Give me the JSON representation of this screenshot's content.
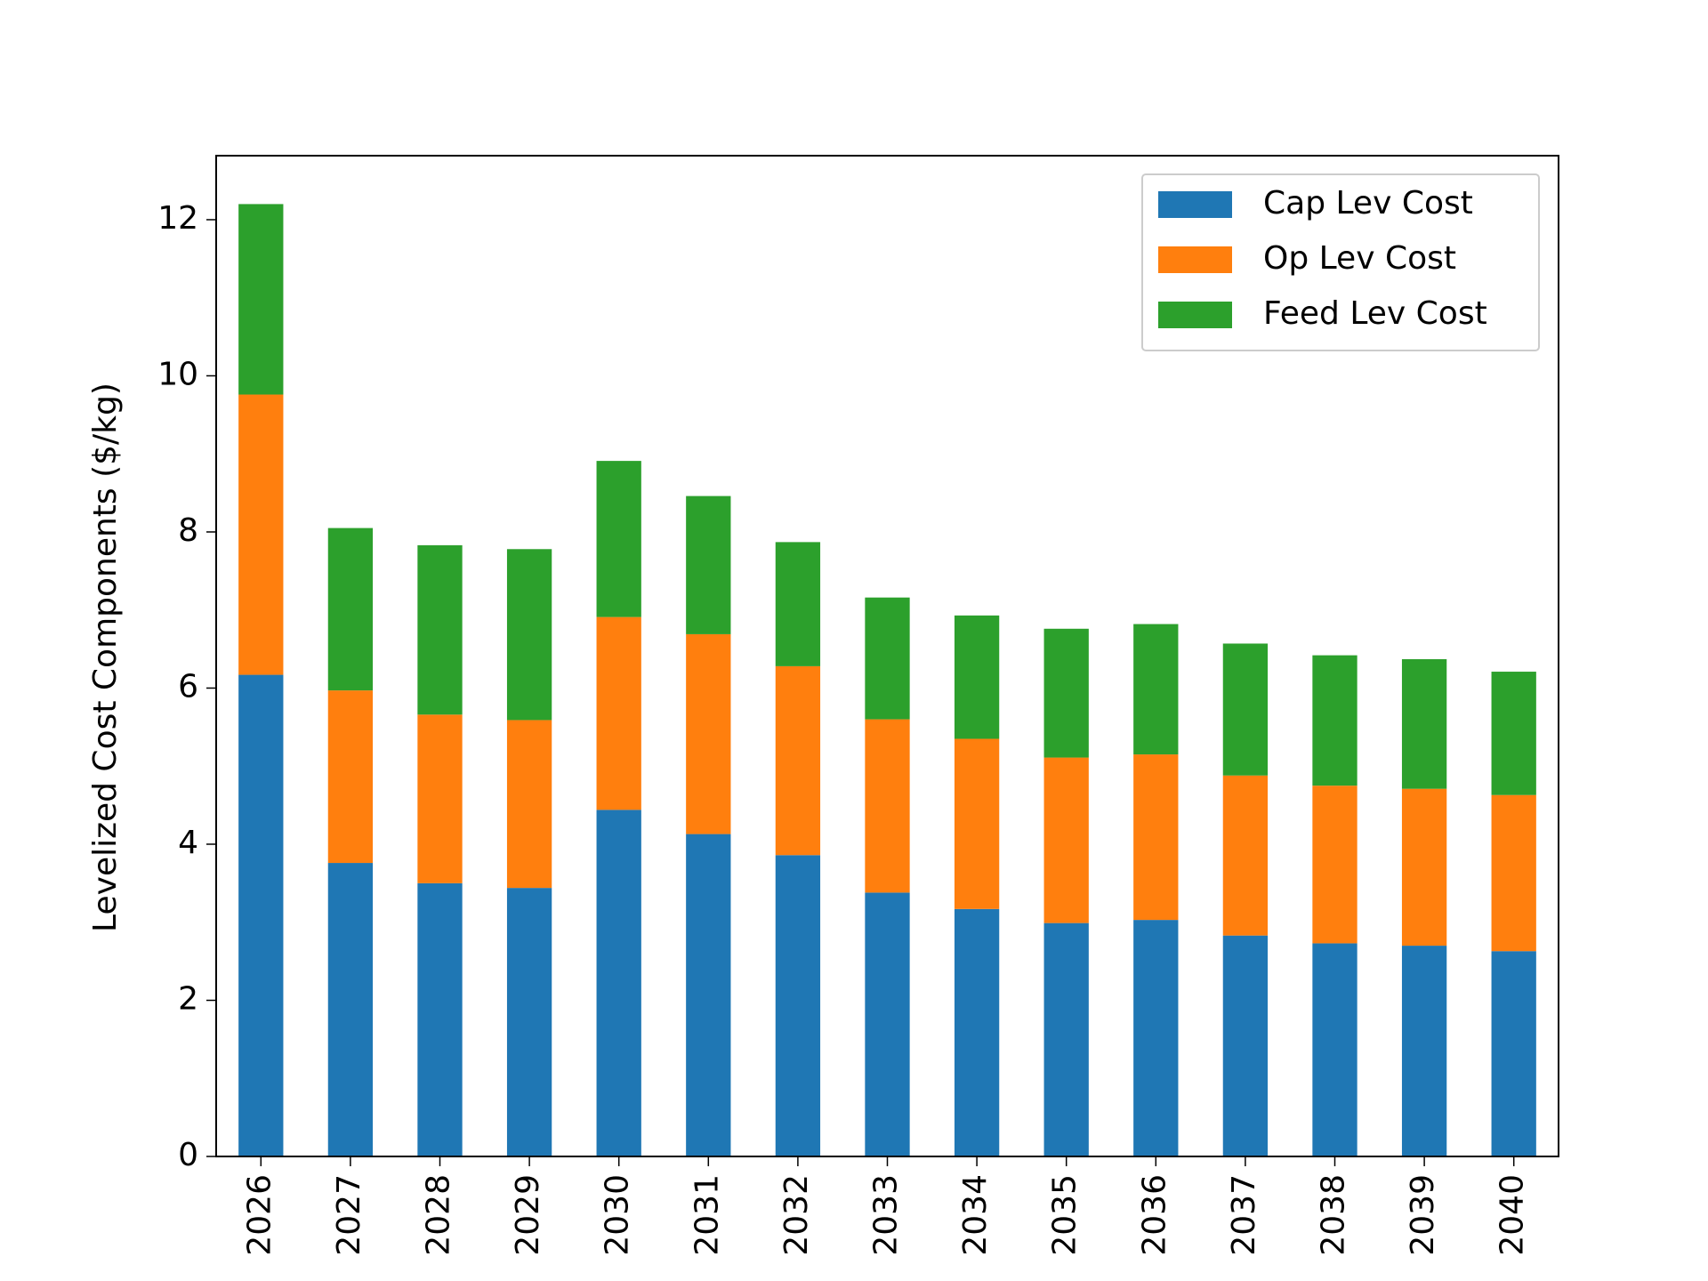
{
  "chart_data": {
    "type": "stacked_bar",
    "y_label": "Levelized Cost Components ($/kg)",
    "categories": [
      "2026",
      "2027",
      "2028",
      "2029",
      "2030",
      "2031",
      "2032",
      "2033",
      "2034",
      "2035",
      "2036",
      "2037",
      "2038",
      "2039",
      "2040"
    ],
    "series": [
      {
        "name": "Cap Lev Cost",
        "color": "#1f77b4",
        "values": [
          6.17,
          3.76,
          3.5,
          3.44,
          4.44,
          4.13,
          3.86,
          3.38,
          3.17,
          2.99,
          3.03,
          2.83,
          2.73,
          2.7,
          2.63
        ]
      },
      {
        "name": "Op Lev Cost",
        "color": "#ff7f0e",
        "values": [
          3.59,
          2.21,
          2.16,
          2.15,
          2.47,
          2.56,
          2.42,
          2.22,
          2.18,
          2.12,
          2.12,
          2.05,
          2.02,
          2.01,
          2.0
        ]
      },
      {
        "name": "Feed Lev Cost",
        "color": "#2ca02c",
        "values": [
          2.44,
          2.08,
          2.17,
          2.19,
          2.0,
          1.77,
          1.59,
          1.56,
          1.58,
          1.65,
          1.67,
          1.69,
          1.67,
          1.66,
          1.58
        ]
      }
    ],
    "ylim": [
      0,
      12.82
    ],
    "yticks": [
      0,
      2,
      4,
      6,
      8,
      10,
      12
    ],
    "legend": "upper right"
  }
}
